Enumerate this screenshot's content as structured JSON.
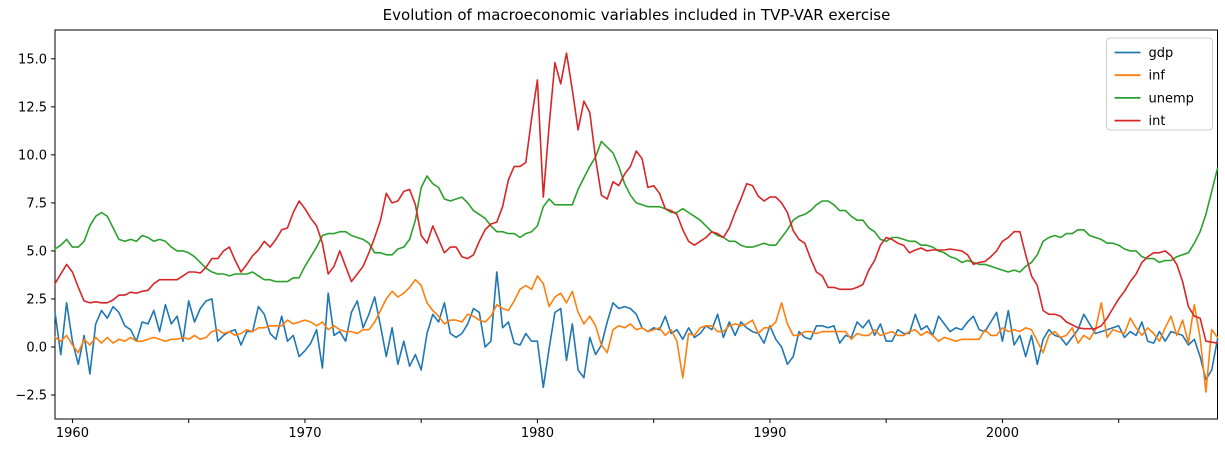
{
  "figure": {
    "background": "#ffffff",
    "axes_color": "#000000",
    "text_color": "#000000"
  },
  "chart_data": {
    "type": "line",
    "title": "Evolution of macroeconomic variables included in TVP-VAR exercise",
    "xlabel": "",
    "ylabel": "",
    "grid": false,
    "x_start": 1959.25,
    "x_step": 0.25,
    "x_unit": "year (quarterly observations)",
    "xlim": [
      1959.25,
      2009.25
    ],
    "ylim": [
      -3.75,
      16.5
    ],
    "xticks": [
      {
        "value": 1960,
        "label": "1960"
      },
      {
        "value": 1965,
        "label": ""
      },
      {
        "value": 1970,
        "label": "1970"
      },
      {
        "value": 1975,
        "label": ""
      },
      {
        "value": 1980,
        "label": "1980"
      },
      {
        "value": 1985,
        "label": ""
      },
      {
        "value": 1990,
        "label": "1990"
      },
      {
        "value": 1995,
        "label": ""
      },
      {
        "value": 2000,
        "label": "2000"
      },
      {
        "value": 2005,
        "label": ""
      }
    ],
    "yticks": [
      {
        "value": -2.5,
        "label": "−2.5"
      },
      {
        "value": 0.0,
        "label": "0.0"
      },
      {
        "value": 2.5,
        "label": "2.5"
      },
      {
        "value": 5.0,
        "label": "5.0"
      },
      {
        "value": 7.5,
        "label": "7.5"
      },
      {
        "value": 10.0,
        "label": "10.0"
      },
      {
        "value": 12.5,
        "label": "12.5"
      },
      {
        "value": 15.0,
        "label": "15.0"
      }
    ],
    "legend": {
      "position": "upper right",
      "entries": [
        "gdp",
        "inf",
        "unemp",
        "int"
      ]
    },
    "series": [
      {
        "name": "gdp",
        "color": "#1f77b4",
        "values": [
          1.8,
          -0.4,
          2.3,
          0.3,
          -0.9,
          0.6,
          -1.4,
          1.2,
          1.9,
          1.5,
          2.1,
          1.8,
          1.1,
          0.9,
          0.3,
          1.3,
          1.2,
          1.9,
          0.8,
          2.2,
          1.2,
          1.6,
          0.3,
          2.4,
          1.3,
          2.0,
          2.4,
          2.5,
          0.3,
          0.6,
          0.8,
          0.9,
          0.1,
          0.8,
          0.8,
          2.1,
          1.7,
          0.7,
          0.4,
          1.6,
          0.3,
          0.6,
          -0.5,
          -0.2,
          0.2,
          0.9,
          -1.1,
          2.8,
          0.6,
          0.8,
          0.3,
          1.8,
          2.4,
          1.0,
          1.7,
          2.6,
          1.1,
          -0.5,
          1.0,
          -0.9,
          0.3,
          -1.0,
          -0.4,
          -1.2,
          0.7,
          1.7,
          1.3,
          2.3,
          0.7,
          0.5,
          0.7,
          1.2,
          2.0,
          1.8,
          0.0,
          0.3,
          3.9,
          1.0,
          1.3,
          0.2,
          0.1,
          0.7,
          0.3,
          0.3,
          -2.1,
          -0.1,
          1.8,
          2.0,
          -0.7,
          1.2,
          -1.2,
          -1.6,
          0.5,
          -0.4,
          0.1,
          1.3,
          2.3,
          2.0,
          2.1,
          2.0,
          1.7,
          1.0,
          0.8,
          1.0,
          0.9,
          1.6,
          0.7,
          0.9,
          0.4,
          1.0,
          0.5,
          0.7,
          1.1,
          0.9,
          1.7,
          0.5,
          1.3,
          0.6,
          1.3,
          1.0,
          0.8,
          0.7,
          0.2,
          1.1,
          0.4,
          0.0,
          -0.9,
          -0.5,
          0.8,
          0.5,
          0.4,
          1.1,
          1.1,
          1.0,
          1.1,
          0.2,
          0.6,
          0.5,
          1.3,
          1.0,
          1.4,
          0.6,
          1.2,
          0.3,
          0.3,
          0.9,
          0.7,
          0.7,
          1.7,
          0.9,
          1.1,
          0.6,
          1.6,
          1.2,
          0.8,
          1.0,
          0.9,
          1.3,
          1.6,
          0.9,
          0.8,
          1.3,
          1.8,
          0.3,
          1.9,
          0.1,
          0.6,
          -0.5,
          0.6,
          -0.9,
          0.4,
          0.9,
          0.6,
          0.5,
          0.1,
          0.5,
          0.9,
          1.7,
          1.2,
          0.7,
          0.8,
          0.9,
          1.0,
          1.1,
          0.5,
          0.8,
          0.6,
          1.3,
          0.3,
          0.2,
          0.8,
          0.3,
          0.8,
          0.7,
          0.6,
          0.1,
          0.4,
          -0.5,
          -1.7,
          -1.2,
          0.4
        ]
      },
      {
        "name": "inf",
        "color": "#ff7f0e",
        "values": [
          0.5,
          0.3,
          0.6,
          0.1,
          -0.3,
          0.4,
          0.1,
          0.5,
          0.2,
          0.5,
          0.2,
          0.4,
          0.3,
          0.5,
          0.3,
          0.3,
          0.4,
          0.5,
          0.4,
          0.3,
          0.4,
          0.4,
          0.5,
          0.4,
          0.6,
          0.4,
          0.5,
          0.8,
          0.9,
          0.7,
          0.8,
          0.6,
          0.7,
          0.9,
          0.8,
          1.0,
          1.0,
          1.1,
          1.1,
          1.1,
          1.4,
          1.2,
          1.3,
          1.4,
          1.3,
          1.1,
          1.3,
          0.9,
          1.1,
          0.9,
          0.8,
          0.8,
          0.7,
          0.9,
          0.9,
          1.3,
          1.9,
          2.5,
          2.9,
          2.6,
          2.8,
          3.1,
          3.5,
          3.2,
          2.3,
          1.9,
          1.6,
          1.2,
          1.4,
          1.4,
          1.3,
          1.7,
          1.6,
          1.4,
          1.3,
          1.6,
          2.2,
          2.0,
          1.9,
          2.4,
          3.0,
          3.2,
          3.0,
          3.7,
          3.3,
          2.1,
          2.6,
          2.8,
          2.3,
          2.9,
          1.8,
          1.2,
          1.6,
          1.1,
          0.1,
          -0.3,
          0.9,
          1.1,
          1.0,
          1.2,
          0.9,
          1.0,
          0.8,
          0.9,
          1.0,
          0.6,
          0.9,
          0.3,
          -1.6,
          0.7,
          0.6,
          1.0,
          1.1,
          1.1,
          0.8,
          0.8,
          1.1,
          1.2,
          1.1,
          1.2,
          1.4,
          0.7,
          1.0,
          1.0,
          1.3,
          2.3,
          1.2,
          0.6,
          0.6,
          0.8,
          0.8,
          0.7,
          0.8,
          0.8,
          0.8,
          0.8,
          0.8,
          0.4,
          0.7,
          0.6,
          0.6,
          0.9,
          0.6,
          0.7,
          0.8,
          0.6,
          0.6,
          0.8,
          0.9,
          0.6,
          0.8,
          0.6,
          0.3,
          0.5,
          0.4,
          0.3,
          0.4,
          0.4,
          0.4,
          0.4,
          0.9,
          0.6,
          0.6,
          1.0,
          0.8,
          0.9,
          0.8,
          1.0,
          0.9,
          0.3,
          -0.3,
          0.6,
          0.8,
          0.5,
          0.6,
          1.0,
          0.2,
          0.6,
          0.4,
          0.9,
          2.3,
          0.5,
          0.9,
          0.8,
          0.7,
          1.5,
          1.0,
          0.6,
          1.0,
          0.7,
          0.3,
          1.0,
          1.6,
          0.6,
          1.4,
          0.2,
          2.2,
          0.5,
          -2.35,
          0.9,
          0.5
        ]
      },
      {
        "name": "unemp",
        "color": "#2ca02c",
        "values": [
          5.1,
          5.3,
          5.6,
          5.2,
          5.2,
          5.5,
          6.3,
          6.8,
          7.0,
          6.8,
          6.2,
          5.6,
          5.5,
          5.6,
          5.5,
          5.8,
          5.7,
          5.5,
          5.6,
          5.5,
          5.2,
          5.0,
          5.0,
          4.9,
          4.7,
          4.4,
          4.1,
          3.9,
          3.8,
          3.8,
          3.7,
          3.8,
          3.8,
          3.8,
          3.9,
          3.7,
          3.5,
          3.5,
          3.4,
          3.4,
          3.4,
          3.6,
          3.6,
          4.2,
          4.7,
          5.2,
          5.8,
          5.9,
          5.9,
          6.0,
          6.0,
          5.8,
          5.7,
          5.6,
          5.4,
          4.9,
          4.9,
          4.8,
          4.8,
          5.1,
          5.2,
          5.6,
          6.6,
          8.3,
          8.9,
          8.5,
          8.3,
          7.7,
          7.6,
          7.7,
          7.8,
          7.5,
          7.1,
          6.9,
          6.7,
          6.3,
          6.0,
          6.0,
          5.9,
          5.9,
          5.7,
          5.9,
          6.0,
          6.3,
          7.3,
          7.7,
          7.4,
          7.4,
          7.4,
          7.4,
          8.2,
          8.8,
          9.4,
          9.9,
          10.7,
          10.4,
          10.1,
          9.4,
          8.5,
          7.9,
          7.5,
          7.4,
          7.3,
          7.3,
          7.3,
          7.2,
          7.0,
          7.0,
          7.2,
          7.0,
          6.8,
          6.6,
          6.3,
          6.0,
          5.8,
          5.7,
          5.5,
          5.5,
          5.3,
          5.2,
          5.2,
          5.3,
          5.4,
          5.3,
          5.3,
          5.7,
          6.1,
          6.6,
          6.8,
          6.9,
          7.1,
          7.4,
          7.6,
          7.6,
          7.4,
          7.1,
          7.1,
          6.8,
          6.6,
          6.6,
          6.2,
          6.0,
          5.6,
          5.5,
          5.7,
          5.7,
          5.6,
          5.5,
          5.5,
          5.3,
          5.3,
          5.2,
          5.0,
          4.9,
          4.7,
          4.6,
          4.4,
          4.5,
          4.4,
          4.3,
          4.3,
          4.2,
          4.1,
          4.0,
          3.9,
          4.0,
          3.9,
          4.2,
          4.4,
          4.8,
          5.5,
          5.7,
          5.8,
          5.7,
          5.9,
          5.9,
          6.1,
          6.1,
          5.8,
          5.7,
          5.6,
          5.4,
          5.4,
          5.3,
          5.1,
          5.0,
          5.0,
          4.7,
          4.6,
          4.6,
          4.4,
          4.5,
          4.5,
          4.7,
          4.8,
          4.9,
          5.4,
          6.0,
          6.9,
          8.1,
          9.3
        ]
      },
      {
        "name": "int",
        "color": "#d62728",
        "values": [
          3.3,
          3.8,
          4.3,
          3.9,
          3.1,
          2.4,
          2.3,
          2.35,
          2.3,
          2.3,
          2.45,
          2.7,
          2.7,
          2.85,
          2.8,
          2.9,
          2.95,
          3.3,
          3.5,
          3.5,
          3.5,
          3.5,
          3.7,
          3.9,
          3.9,
          3.85,
          4.15,
          4.6,
          4.6,
          5.0,
          5.2,
          4.5,
          3.9,
          4.3,
          4.75,
          5.05,
          5.5,
          5.2,
          5.6,
          6.1,
          6.2,
          7.0,
          7.6,
          7.2,
          6.7,
          6.3,
          5.4,
          3.8,
          4.2,
          5.0,
          4.2,
          3.4,
          3.8,
          4.2,
          4.9,
          5.7,
          6.6,
          8.0,
          7.5,
          7.6,
          8.1,
          8.2,
          7.4,
          5.8,
          5.4,
          6.3,
          5.6,
          4.9,
          5.2,
          5.2,
          4.7,
          4.6,
          4.8,
          5.5,
          6.1,
          6.4,
          6.5,
          7.3,
          8.7,
          9.4,
          9.4,
          9.6,
          11.9,
          13.9,
          7.8,
          11.5,
          14.8,
          13.7,
          15.3,
          13.4,
          11.3,
          12.8,
          12.2,
          9.8,
          7.9,
          7.7,
          8.6,
          8.4,
          9.0,
          9.4,
          10.2,
          9.8,
          8.3,
          8.4,
          8.0,
          7.2,
          7.1,
          6.9,
          6.1,
          5.5,
          5.3,
          5.5,
          5.7,
          6.0,
          5.9,
          5.7,
          6.2,
          7.0,
          7.7,
          8.5,
          8.4,
          7.85,
          7.6,
          7.8,
          7.8,
          7.5,
          7.0,
          6.05,
          5.6,
          5.4,
          4.6,
          3.9,
          3.7,
          3.1,
          3.1,
          3.0,
          3.0,
          3.0,
          3.1,
          3.25,
          4.0,
          4.5,
          5.3,
          5.7,
          5.6,
          5.4,
          5.3,
          4.9,
          5.05,
          5.15,
          5.0,
          5.05,
          5.05,
          5.05,
          5.1,
          5.05,
          5.0,
          4.8,
          4.3,
          4.4,
          4.45,
          4.7,
          5.0,
          5.5,
          5.7,
          6.0,
          6.0,
          4.8,
          3.7,
          3.2,
          1.9,
          1.7,
          1.7,
          1.6,
          1.3,
          1.15,
          1.0,
          0.95,
          0.95,
          0.95,
          1.1,
          1.5,
          2.0,
          2.5,
          2.9,
          3.4,
          3.8,
          4.4,
          4.7,
          4.9,
          4.9,
          5.0,
          4.75,
          4.3,
          3.4,
          2.1,
          1.6,
          1.5,
          0.3,
          0.25,
          0.2
        ]
      }
    ]
  }
}
